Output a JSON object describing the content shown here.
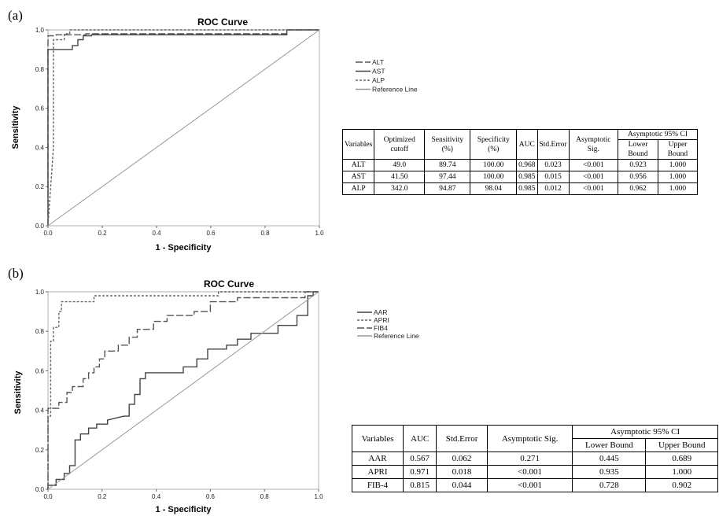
{
  "panels": [
    {
      "label": "(a)",
      "chart_data": {
        "type": "line",
        "title": "ROC Curve",
        "xlabel": "1 - Specificity",
        "ylabel": "Sensitivity",
        "xlim": [
          0,
          1
        ],
        "ylim": [
          0,
          1
        ],
        "xticks": [
          "0.0",
          "0.2",
          "0.4",
          "0.6",
          "0.8",
          "1.0"
        ],
        "yticks": [
          "0.0",
          "0.2",
          "0.4",
          "0.6",
          "0.8",
          "1.0"
        ],
        "legend_position": "right",
        "series": [
          {
            "name": "ALT",
            "dash": "longdash",
            "color": "#555555",
            "points": [
              [
                0,
                0
              ],
              [
                0,
                0.97
              ],
              [
                0.03,
                0.97
              ],
              [
                0.03,
                0.975
              ],
              [
                0.14,
                0.975
              ],
              [
                0.14,
                0.98
              ],
              [
                0.88,
                0.98
              ],
              [
                0.88,
                1.0
              ],
              [
                1,
                1
              ]
            ]
          },
          {
            "name": "AST",
            "dash": "solid",
            "color": "#444444",
            "points": [
              [
                0,
                0
              ],
              [
                0,
                0.9
              ],
              [
                0.09,
                0.9
              ],
              [
                0.09,
                0.92
              ],
              [
                0.11,
                0.92
              ],
              [
                0.11,
                0.95
              ],
              [
                0.13,
                0.95
              ],
              [
                0.13,
                0.97
              ],
              [
                0.16,
                0.97
              ],
              [
                0.16,
                0.975
              ],
              [
                0.88,
                0.975
              ],
              [
                0.88,
                1.0
              ],
              [
                1,
                1
              ]
            ]
          },
          {
            "name": "ALP",
            "dash": "shortdash",
            "color": "#666666",
            "points": [
              [
                0,
                0
              ],
              [
                0.02,
                0.4
              ],
              [
                0.02,
                0.95
              ],
              [
                0.06,
                0.95
              ],
              [
                0.06,
                0.98
              ],
              [
                0.08,
                0.98
              ],
              [
                0.08,
                1.0
              ],
              [
                1,
                1
              ]
            ]
          },
          {
            "name": "Reference Line",
            "dash": "solid",
            "color": "#999999",
            "points": [
              [
                0,
                0
              ],
              [
                1,
                1
              ]
            ]
          }
        ]
      },
      "table": {
        "headers": [
          "Variables",
          "Optimized cutoff",
          "Sensitivity (%)",
          "Specificity (%)",
          "AUC",
          "Std.Error",
          "Asymptotic Sig.",
          "Asymptotic 95% CI"
        ],
        "ci_headers": [
          "Lower Bound",
          "Upper Bound"
        ],
        "rows": [
          [
            "ALT",
            "49.0",
            "89.74",
            "100.00",
            "0.968",
            "0.023",
            "<0.001",
            "0.923",
            "1.000"
          ],
          [
            "AST",
            "41.50",
            "97.44",
            "100.00",
            "0.985",
            "0.015",
            "<0.001",
            "0.956",
            "1.000"
          ],
          [
            "ALP",
            "342.0",
            "94.87",
            "98.04",
            "0.985",
            "0.012",
            "<0.001",
            "0.962",
            "1.000"
          ]
        ]
      }
    },
    {
      "label": "(b)",
      "chart_data": {
        "type": "line",
        "title": "ROC Curve",
        "xlabel": "1 - Specificity",
        "ylabel": "Sensitivity",
        "xlim": [
          0,
          1
        ],
        "ylim": [
          0,
          1
        ],
        "xticks": [
          "0.0",
          "0.2",
          "0.4",
          "0.6",
          "0.8",
          "1.0"
        ],
        "yticks": [
          "0.0",
          "0.2",
          "0.4",
          "0.6",
          "0.8",
          "1.0"
        ],
        "legend_position": "right",
        "series": [
          {
            "name": "AAR",
            "dash": "solid",
            "color": "#444444",
            "points": [
              [
                0,
                0
              ],
              [
                0,
                0.02
              ],
              [
                0.03,
                0.02
              ],
              [
                0.03,
                0.05
              ],
              [
                0.06,
                0.05
              ],
              [
                0.06,
                0.08
              ],
              [
                0.08,
                0.08
              ],
              [
                0.08,
                0.12
              ],
              [
                0.1,
                0.12
              ],
              [
                0.1,
                0.25
              ],
              [
                0.12,
                0.25
              ],
              [
                0.12,
                0.28
              ],
              [
                0.15,
                0.28
              ],
              [
                0.15,
                0.31
              ],
              [
                0.18,
                0.31
              ],
              [
                0.18,
                0.33
              ],
              [
                0.22,
                0.33
              ],
              [
                0.22,
                0.35
              ],
              [
                0.28,
                0.37
              ],
              [
                0.3,
                0.37
              ],
              [
                0.3,
                0.43
              ],
              [
                0.32,
                0.43
              ],
              [
                0.32,
                0.48
              ],
              [
                0.34,
                0.48
              ],
              [
                0.34,
                0.56
              ],
              [
                0.36,
                0.56
              ],
              [
                0.36,
                0.59
              ],
              [
                0.5,
                0.59
              ],
              [
                0.5,
                0.62
              ],
              [
                0.55,
                0.62
              ],
              [
                0.55,
                0.66
              ],
              [
                0.59,
                0.66
              ],
              [
                0.59,
                0.71
              ],
              [
                0.66,
                0.71
              ],
              [
                0.66,
                0.73
              ],
              [
                0.7,
                0.73
              ],
              [
                0.7,
                0.76
              ],
              [
                0.75,
                0.76
              ],
              [
                0.75,
                0.79
              ],
              [
                0.85,
                0.79
              ],
              [
                0.85,
                0.83
              ],
              [
                0.92,
                0.83
              ],
              [
                0.92,
                0.88
              ],
              [
                0.96,
                0.88
              ],
              [
                0.96,
                0.98
              ],
              [
                0.98,
                0.98
              ],
              [
                0.98,
                1.0
              ],
              [
                1,
                1
              ]
            ]
          },
          {
            "name": "APRI",
            "dash": "shortdash",
            "color": "#666666",
            "points": [
              [
                0,
                0
              ],
              [
                0,
                0.37
              ],
              [
                0.01,
                0.37
              ],
              [
                0.01,
                0.75
              ],
              [
                0.02,
                0.75
              ],
              [
                0.02,
                0.82
              ],
              [
                0.04,
                0.82
              ],
              [
                0.04,
                0.9
              ],
              [
                0.05,
                0.9
              ],
              [
                0.05,
                0.95
              ],
              [
                0.17,
                0.95
              ],
              [
                0.17,
                0.98
              ],
              [
                0.63,
                0.98
              ],
              [
                0.63,
                1.0
              ],
              [
                1,
                1
              ]
            ]
          },
          {
            "name": "FIB4",
            "dash": "longdash",
            "color": "#555555",
            "points": [
              [
                0,
                0
              ],
              [
                0,
                0.41
              ],
              [
                0.04,
                0.41
              ],
              [
                0.04,
                0.44
              ],
              [
                0.07,
                0.44
              ],
              [
                0.07,
                0.49
              ],
              [
                0.09,
                0.49
              ],
              [
                0.09,
                0.52
              ],
              [
                0.13,
                0.52
              ],
              [
                0.13,
                0.56
              ],
              [
                0.15,
                0.56
              ],
              [
                0.15,
                0.59
              ],
              [
                0.17,
                0.59
              ],
              [
                0.17,
                0.62
              ],
              [
                0.19,
                0.62
              ],
              [
                0.19,
                0.66
              ],
              [
                0.21,
                0.66
              ],
              [
                0.21,
                0.7
              ],
              [
                0.26,
                0.7
              ],
              [
                0.26,
                0.73
              ],
              [
                0.3,
                0.73
              ],
              [
                0.3,
                0.77
              ],
              [
                0.33,
                0.77
              ],
              [
                0.33,
                0.81
              ],
              [
                0.39,
                0.81
              ],
              [
                0.39,
                0.85
              ],
              [
                0.44,
                0.85
              ],
              [
                0.44,
                0.88
              ],
              [
                0.54,
                0.88
              ],
              [
                0.54,
                0.9
              ],
              [
                0.6,
                0.9
              ],
              [
                0.6,
                0.95
              ],
              [
                0.7,
                0.95
              ],
              [
                0.7,
                0.97
              ],
              [
                0.95,
                0.97
              ],
              [
                0.95,
                1.0
              ],
              [
                1,
                1
              ]
            ]
          },
          {
            "name": "Reference Line",
            "dash": "solid",
            "color": "#999999",
            "points": [
              [
                0,
                0
              ],
              [
                1,
                1
              ]
            ]
          }
        ]
      },
      "table": {
        "headers": [
          "Variables",
          "AUC",
          "Std.Error",
          "Asymptotic Sig.",
          "Asymptotic 95% CI"
        ],
        "ci_headers": [
          "Lower Bound",
          "Upper Bound"
        ],
        "rows": [
          [
            "AAR",
            "0.567",
            "0.062",
            "0.271",
            "0.445",
            "0.689"
          ],
          [
            "APRI",
            "0.971",
            "0.018",
            "<0.001",
            "0.935",
            "1.000"
          ],
          [
            "FIB-4",
            "0.815",
            "0.044",
            "<0.001",
            "0.728",
            "0.902"
          ]
        ]
      }
    }
  ]
}
